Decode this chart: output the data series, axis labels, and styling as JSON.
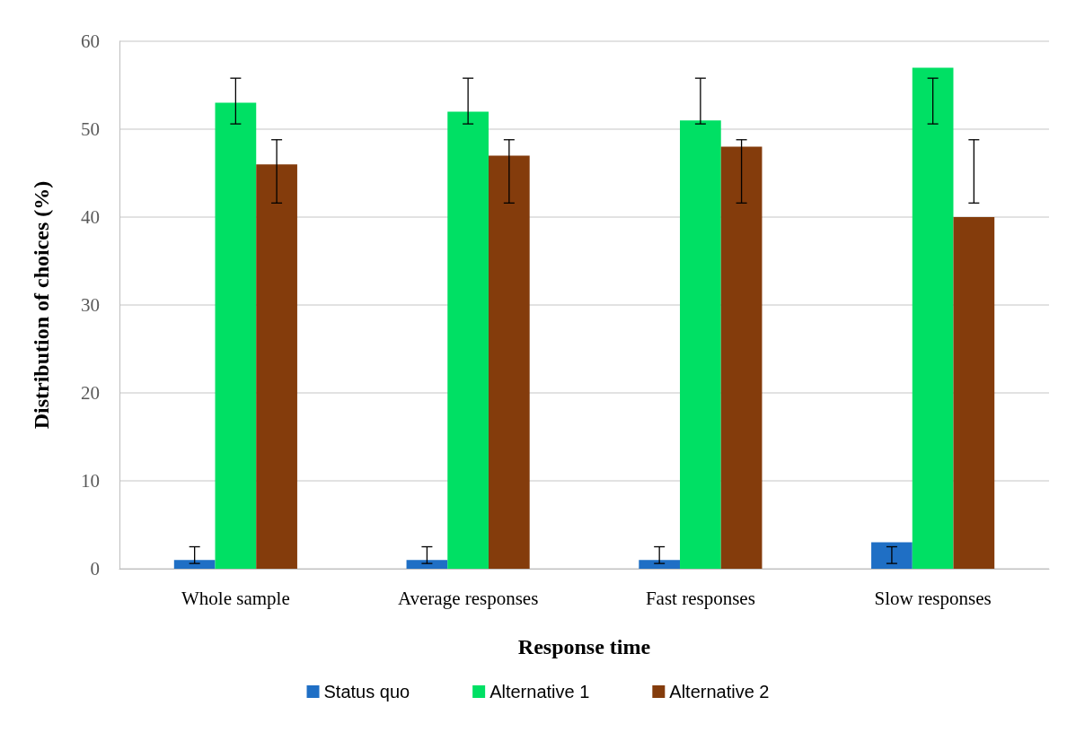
{
  "chart_data": {
    "type": "bar",
    "xlabel": "Response time",
    "ylabel": "Distribution of choices (%)",
    "categories": [
      "Whole sample",
      "Average responses",
      "Fast responses",
      "Slow responses"
    ],
    "series": [
      {
        "name": "Status quo",
        "color": "#1f6fc5",
        "values": [
          1,
          1,
          1,
          3
        ],
        "errors": [
          [
            0.6,
            2.5
          ],
          [
            0.6,
            2.5
          ],
          [
            0.6,
            2.5
          ],
          [
            0.6,
            2.5
          ]
        ]
      },
      {
        "name": "Alternative 1",
        "color": "#00e064",
        "values": [
          53,
          52,
          51,
          57
        ],
        "errors": [
          [
            50.6,
            55.8
          ],
          [
            50.6,
            55.8
          ],
          [
            50.6,
            55.8
          ],
          [
            50.6,
            55.8
          ]
        ]
      },
      {
        "name": "Alternative 2",
        "color": "#843c0c",
        "values": [
          46,
          47,
          48,
          40
        ],
        "errors": [
          [
            41.6,
            48.8
          ],
          [
            41.6,
            48.8
          ],
          [
            41.6,
            48.8
          ],
          [
            41.6,
            48.8
          ]
        ]
      }
    ],
    "ylim": [
      0,
      60
    ],
    "yticks": [
      0,
      10,
      20,
      30,
      40,
      50,
      60
    ],
    "grid": "y",
    "legend": "bottom"
  }
}
